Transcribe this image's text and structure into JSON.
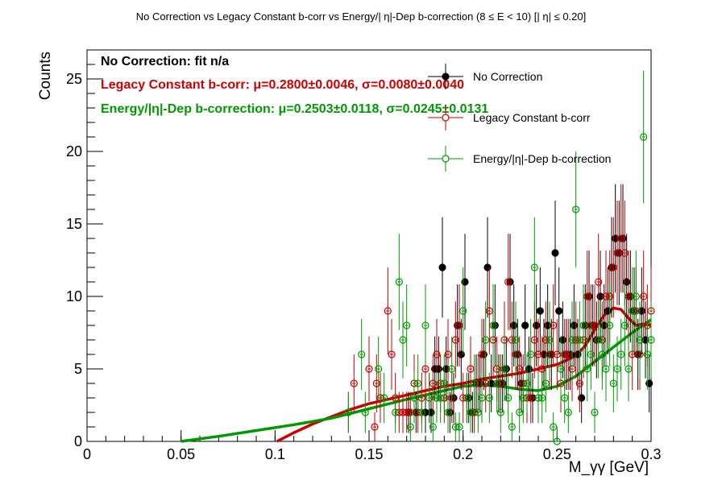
{
  "chart_data": {
    "type": "scatter",
    "title": "No Correction vs Legacy Constant b-corr vs Energy/|   η|-Dep b-correction   (8   ≤ E < 10)   [| η| ≤ 0.20]",
    "xlabel": "M_γγ [GeV]",
    "ylabel": "Counts",
    "xlim": [
      0,
      0.3
    ],
    "ylim": [
      0,
      27
    ],
    "x_ticks": [
      "0",
      "0.05",
      "0.1",
      "0.15",
      "0.2",
      "0.25",
      "0.3"
    ],
    "y_ticks": [
      "0",
      "5",
      "10",
      "15",
      "20",
      "25"
    ],
    "grid": false,
    "legend_position": "top-right",
    "fit_texts": [
      {
        "label": "No Correction: fit n/a",
        "color": "#000000"
      },
      {
        "label": "Legacy Constant b-corr: μ=0.2800±0.0046, σ=0.0080±0.0040",
        "color": "#cc0000"
      },
      {
        "label": "Energy/|η|-Dep b-correction: μ=0.2503±0.0118, σ=0.0245±0.0131",
        "color": "#009900"
      }
    ],
    "series": [
      {
        "name": "No Correction",
        "color": "#000000",
        "marker": "filled-circle",
        "points": [
          [
            0.171,
            2
          ],
          [
            0.175,
            2
          ],
          [
            0.18,
            2
          ],
          [
            0.183,
            2
          ],
          [
            0.185,
            5
          ],
          [
            0.187,
            5
          ],
          [
            0.189,
            12
          ],
          [
            0.191,
            5
          ],
          [
            0.193,
            2
          ],
          [
            0.195,
            3
          ],
          [
            0.197,
            8
          ],
          [
            0.199,
            6
          ],
          [
            0.201,
            11
          ],
          [
            0.203,
            3
          ],
          [
            0.205,
            2
          ],
          [
            0.207,
            4
          ],
          [
            0.209,
            4
          ],
          [
            0.211,
            6
          ],
          [
            0.213,
            12
          ],
          [
            0.215,
            4
          ],
          [
            0.217,
            8
          ],
          [
            0.219,
            4
          ],
          [
            0.221,
            4
          ],
          [
            0.223,
            5
          ],
          [
            0.225,
            11
          ],
          [
            0.227,
            8
          ],
          [
            0.229,
            6
          ],
          [
            0.231,
            4
          ],
          [
            0.233,
            8
          ],
          [
            0.235,
            5
          ],
          [
            0.237,
            3
          ],
          [
            0.239,
            8
          ],
          [
            0.241,
            9
          ],
          [
            0.243,
            6
          ],
          [
            0.245,
            8
          ],
          [
            0.247,
            6
          ],
          [
            0.249,
            13
          ],
          [
            0.251,
            9
          ],
          [
            0.253,
            7
          ],
          [
            0.255,
            6
          ],
          [
            0.257,
            6
          ],
          [
            0.259,
            8
          ],
          [
            0.261,
            6
          ],
          [
            0.263,
            3
          ],
          [
            0.265,
            8
          ],
          [
            0.267,
            10
          ],
          [
            0.269,
            8
          ],
          [
            0.271,
            7
          ],
          [
            0.273,
            10
          ],
          [
            0.275,
            8
          ],
          [
            0.277,
            9
          ],
          [
            0.279,
            12
          ],
          [
            0.281,
            14
          ],
          [
            0.283,
            13
          ],
          [
            0.285,
            14
          ],
          [
            0.287,
            11
          ],
          [
            0.289,
            10
          ],
          [
            0.291,
            9
          ],
          [
            0.293,
            6
          ],
          [
            0.295,
            9
          ],
          [
            0.297,
            7
          ],
          [
            0.299,
            4
          ]
        ]
      },
      {
        "name": "Legacy Constant b-corr",
        "color": "#cc0000",
        "marker": "open-circle",
        "points": [
          [
            0.139,
            2
          ],
          [
            0.142,
            4
          ],
          [
            0.15,
            5
          ],
          [
            0.153,
            1
          ],
          [
            0.154,
            4
          ],
          [
            0.156,
            3
          ],
          [
            0.16,
            9
          ],
          [
            0.162,
            6
          ],
          [
            0.164,
            3
          ],
          [
            0.166,
            2
          ],
          [
            0.168,
            2
          ],
          [
            0.17,
            2
          ],
          [
            0.172,
            2
          ],
          [
            0.174,
            4
          ],
          [
            0.176,
            2
          ],
          [
            0.178,
            3
          ],
          [
            0.18,
            5
          ],
          [
            0.182,
            3
          ],
          [
            0.184,
            4
          ],
          [
            0.186,
            6
          ],
          [
            0.188,
            4
          ],
          [
            0.19,
            3
          ],
          [
            0.192,
            6
          ],
          [
            0.194,
            3
          ],
          [
            0.196,
            7
          ],
          [
            0.198,
            8
          ],
          [
            0.2,
            3
          ],
          [
            0.202,
            3
          ],
          [
            0.204,
            5
          ],
          [
            0.206,
            2
          ],
          [
            0.208,
            4
          ],
          [
            0.21,
            6
          ],
          [
            0.212,
            4
          ],
          [
            0.214,
            9
          ],
          [
            0.216,
            7
          ],
          [
            0.218,
            5
          ],
          [
            0.22,
            4
          ],
          [
            0.222,
            7
          ],
          [
            0.224,
            11
          ],
          [
            0.226,
            7
          ],
          [
            0.228,
            6
          ],
          [
            0.23,
            5
          ],
          [
            0.232,
            4
          ],
          [
            0.234,
            3
          ],
          [
            0.236,
            3
          ],
          [
            0.238,
            7
          ],
          [
            0.24,
            6
          ],
          [
            0.242,
            5
          ],
          [
            0.244,
            7
          ],
          [
            0.246,
            6
          ],
          [
            0.248,
            8
          ],
          [
            0.25,
            6
          ],
          [
            0.252,
            4
          ],
          [
            0.254,
            6
          ],
          [
            0.256,
            6
          ],
          [
            0.258,
            5
          ],
          [
            0.26,
            7
          ],
          [
            0.262,
            4
          ],
          [
            0.264,
            7
          ],
          [
            0.266,
            10
          ],
          [
            0.268,
            8
          ],
          [
            0.27,
            8
          ],
          [
            0.272,
            11
          ],
          [
            0.274,
            7
          ],
          [
            0.276,
            10
          ],
          [
            0.278,
            10
          ],
          [
            0.28,
            12
          ],
          [
            0.282,
            13
          ],
          [
            0.284,
            14
          ],
          [
            0.286,
            13
          ],
          [
            0.288,
            10
          ],
          [
            0.29,
            6
          ],
          [
            0.292,
            9
          ],
          [
            0.294,
            6
          ],
          [
            0.296,
            10
          ],
          [
            0.298,
            8
          ],
          [
            0.3,
            9
          ]
        ]
      },
      {
        "name": "Energy/|η|-Dep b-correction",
        "color": "#009900",
        "marker": "open-circle",
        "points": [
          [
            0.139,
            2
          ],
          [
            0.146,
            6
          ],
          [
            0.148,
            2
          ],
          [
            0.155,
            5
          ],
          [
            0.158,
            3
          ],
          [
            0.164,
            2
          ],
          [
            0.166,
            11
          ],
          [
            0.168,
            7
          ],
          [
            0.17,
            8
          ],
          [
            0.172,
            1
          ],
          [
            0.174,
            3
          ],
          [
            0.176,
            4
          ],
          [
            0.178,
            2
          ],
          [
            0.18,
            8
          ],
          [
            0.182,
            3
          ],
          [
            0.184,
            1
          ],
          [
            0.186,
            3
          ],
          [
            0.188,
            3
          ],
          [
            0.19,
            4
          ],
          [
            0.192,
            2
          ],
          [
            0.194,
            5
          ],
          [
            0.196,
            1
          ],
          [
            0.198,
            1
          ],
          [
            0.2,
            9
          ],
          [
            0.202,
            3
          ],
          [
            0.204,
            2
          ],
          [
            0.206,
            4
          ],
          [
            0.208,
            2
          ],
          [
            0.21,
            3
          ],
          [
            0.212,
            7
          ],
          [
            0.214,
            3
          ],
          [
            0.216,
            8
          ],
          [
            0.218,
            4
          ],
          [
            0.22,
            2
          ],
          [
            0.222,
            5
          ],
          [
            0.224,
            3
          ],
          [
            0.226,
            1
          ],
          [
            0.228,
            7
          ],
          [
            0.23,
            2
          ],
          [
            0.232,
            3
          ],
          [
            0.234,
            4
          ],
          [
            0.236,
            6
          ],
          [
            0.238,
            12
          ],
          [
            0.24,
            3
          ],
          [
            0.242,
            3
          ],
          [
            0.244,
            4
          ],
          [
            0.246,
            7
          ],
          [
            0.248,
            1
          ],
          [
            0.25,
            0
          ],
          [
            0.252,
            5
          ],
          [
            0.254,
            3
          ],
          [
            0.256,
            2
          ],
          [
            0.258,
            7
          ],
          [
            0.26,
            16
          ],
          [
            0.262,
            7
          ],
          [
            0.264,
            8
          ],
          [
            0.266,
            5
          ],
          [
            0.268,
            6
          ],
          [
            0.27,
            2
          ],
          [
            0.272,
            7
          ],
          [
            0.274,
            6
          ],
          [
            0.276,
            5
          ],
          [
            0.278,
            8
          ],
          [
            0.28,
            4
          ],
          [
            0.282,
            5
          ],
          [
            0.284,
            6
          ],
          [
            0.286,
            8
          ],
          [
            0.288,
            5
          ],
          [
            0.29,
            9
          ],
          [
            0.292,
            10
          ],
          [
            0.294,
            7
          ],
          [
            0.296,
            21
          ],
          [
            0.298,
            6
          ],
          [
            0.3,
            7
          ]
        ]
      }
    ],
    "fits": [
      {
        "name": "Legacy Constant b-corr fit",
        "color": "#cc0000",
        "points": [
          [
            0.101,
            0.0
          ],
          [
            0.11,
            0.6
          ],
          [
            0.12,
            1.2
          ],
          [
            0.13,
            1.7
          ],
          [
            0.14,
            2.2
          ],
          [
            0.15,
            2.6
          ],
          [
            0.16,
            2.9
          ],
          [
            0.17,
            3.2
          ],
          [
            0.18,
            3.5
          ],
          [
            0.19,
            3.8
          ],
          [
            0.2,
            4.0
          ],
          [
            0.21,
            4.3
          ],
          [
            0.22,
            4.5
          ],
          [
            0.23,
            4.7
          ],
          [
            0.24,
            5.0
          ],
          [
            0.25,
            5.3
          ],
          [
            0.26,
            5.9
          ],
          [
            0.265,
            6.6
          ],
          [
            0.27,
            7.7
          ],
          [
            0.275,
            8.7
          ],
          [
            0.28,
            9.2
          ],
          [
            0.284,
            9.1
          ],
          [
            0.288,
            8.5
          ],
          [
            0.292,
            8.0
          ],
          [
            0.296,
            8.1
          ],
          [
            0.3,
            8.0
          ]
        ]
      },
      {
        "name": "Energy/|η|-Dep b-correction fit",
        "color": "#009900",
        "points": [
          [
            0.05,
            0.0
          ],
          [
            0.07,
            0.35
          ],
          [
            0.09,
            0.75
          ],
          [
            0.11,
            1.15
          ],
          [
            0.13,
            1.6
          ],
          [
            0.15,
            2.25
          ],
          [
            0.17,
            2.9
          ],
          [
            0.19,
            3.5
          ],
          [
            0.2,
            3.8
          ],
          [
            0.21,
            3.9
          ],
          [
            0.22,
            3.8
          ],
          [
            0.23,
            3.6
          ],
          [
            0.24,
            3.5
          ],
          [
            0.25,
            3.8
          ],
          [
            0.26,
            4.5
          ],
          [
            0.27,
            5.5
          ],
          [
            0.28,
            6.5
          ],
          [
            0.29,
            7.5
          ],
          [
            0.3,
            8.4
          ]
        ]
      }
    ]
  }
}
